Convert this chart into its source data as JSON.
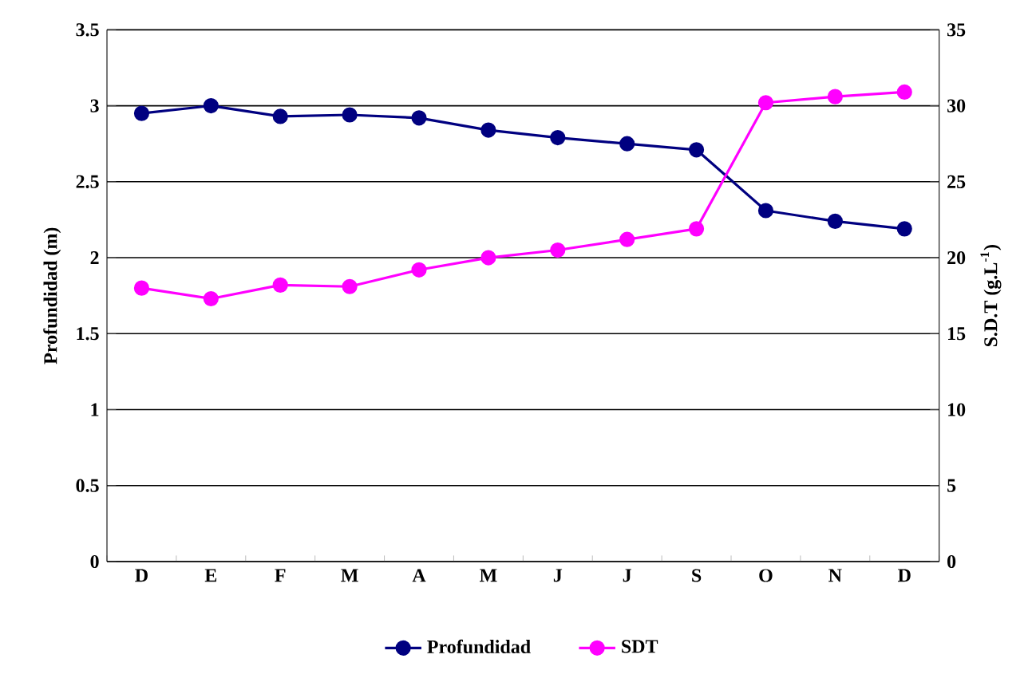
{
  "chart_data": {
    "type": "line",
    "categories": [
      "D",
      "E",
      "F",
      "M",
      "A",
      "M",
      "J",
      "J",
      "S",
      "O",
      "N",
      "D"
    ],
    "ylabel": "Profundidad (m)",
    "y2label": "S.D.T (g.L$^{-1}$)",
    "ylim": [
      0,
      3.5
    ],
    "yticks": [
      0,
      0.5,
      1,
      1.5,
      2,
      2.5,
      3,
      3.5
    ],
    "y2lim": [
      0,
      35
    ],
    "y2ticks": [
      0,
      5,
      10,
      15,
      20,
      25,
      30,
      35
    ],
    "grid": "y",
    "legend": "bottom",
    "marker": "circle",
    "line_style": "solid",
    "series": [
      {
        "name": "Profundidad",
        "color": "#000080",
        "values": [
          2.95,
          3.0,
          2.93,
          2.94,
          2.92,
          2.84,
          2.79,
          2.75,
          2.71,
          2.31,
          2.24,
          2.19
        ]
      },
      {
        "name": "SDT",
        "color": "#ff00ff",
        "axis": "y2",
        "values": [
          18.0,
          17.3,
          18.2,
          18.1,
          19.2,
          20.0,
          20.5,
          21.2,
          21.9,
          30.2,
          30.6,
          30.9
        ]
      }
    ]
  }
}
